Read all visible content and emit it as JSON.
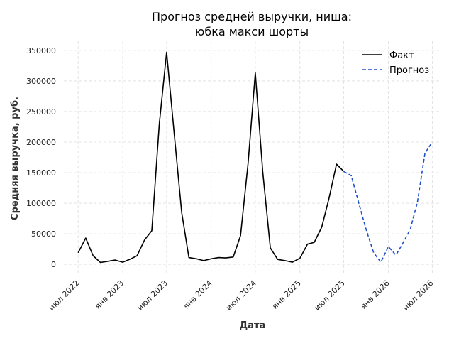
{
  "chart_data": {
    "type": "line",
    "title_line1": "Прогноз средней выручки, ниша:",
    "title_line2": "юбка макси шорты",
    "xlabel": "Дата",
    "ylabel": "Средняя выручка, руб.",
    "ylim": [
      -15000,
      365000
    ],
    "yticks": [
      0,
      50000,
      100000,
      150000,
      200000,
      250000,
      300000,
      350000
    ],
    "ytick_labels": [
      "0",
      "50000",
      "100000",
      "150000",
      "200000",
      "250000",
      "300000",
      "350000"
    ],
    "xlim": [
      "2022-05-03",
      "2026-08-07"
    ],
    "xticks": [
      "2022-07-01",
      "2023-01-01",
      "2023-07-01",
      "2024-01-01",
      "2024-07-01",
      "2025-01-01",
      "2025-07-01",
      "2026-01-01",
      "2026-07-01"
    ],
    "xtick_labels": [
      "июл 2022",
      "янв 2023",
      "июл 2023",
      "янв 2024",
      "июл 2024",
      "янв 2025",
      "июл 2025",
      "янв 2026",
      "июл 2026"
    ],
    "grid": true,
    "legend_position": "top-right",
    "series": [
      {
        "name": "Факт",
        "color": "#000000",
        "style": "solid",
        "x": [
          "2022-07-01",
          "2022-08-01",
          "2022-09-01",
          "2022-10-01",
          "2022-11-01",
          "2022-12-01",
          "2023-01-01",
          "2023-02-01",
          "2023-03-01",
          "2023-04-01",
          "2023-05-01",
          "2023-06-01",
          "2023-07-01",
          "2023-08-01",
          "2023-09-01",
          "2023-10-01",
          "2023-11-01",
          "2023-12-01",
          "2024-01-01",
          "2024-02-01",
          "2024-03-01",
          "2024-04-01",
          "2024-05-01",
          "2024-06-01",
          "2024-07-01",
          "2024-08-01",
          "2024-09-01",
          "2024-10-01",
          "2024-11-01",
          "2024-12-01",
          "2025-01-01",
          "2025-02-01",
          "2025-03-01",
          "2025-04-01",
          "2025-05-01",
          "2025-06-01",
          "2025-07-01"
        ],
        "y": [
          19000,
          43000,
          14000,
          3000,
          5000,
          7000,
          3500,
          8500,
          14000,
          40000,
          55000,
          230000,
          347000,
          215000,
          85000,
          11000,
          9000,
          6000,
          9000,
          11000,
          10500,
          12000,
          47000,
          165000,
          313000,
          150000,
          27000,
          8000,
          6000,
          3500,
          10000,
          33000,
          36000,
          61000,
          108000,
          164000,
          152000
        ]
      },
      {
        "name": "Прогноз",
        "color": "#1f4fc9",
        "style": "dashed",
        "x": [
          "2025-07-01",
          "2025-08-01",
          "2025-09-01",
          "2025-10-01",
          "2025-11-01",
          "2025-12-01",
          "2026-01-01",
          "2026-02-01",
          "2026-03-01",
          "2026-04-01",
          "2026-05-01",
          "2026-06-01",
          "2026-07-01"
        ],
        "y": [
          152000,
          145000,
          100000,
          57000,
          19000,
          3500,
          29000,
          15000,
          34000,
          57000,
          102000,
          182000,
          200000
        ]
      }
    ]
  }
}
